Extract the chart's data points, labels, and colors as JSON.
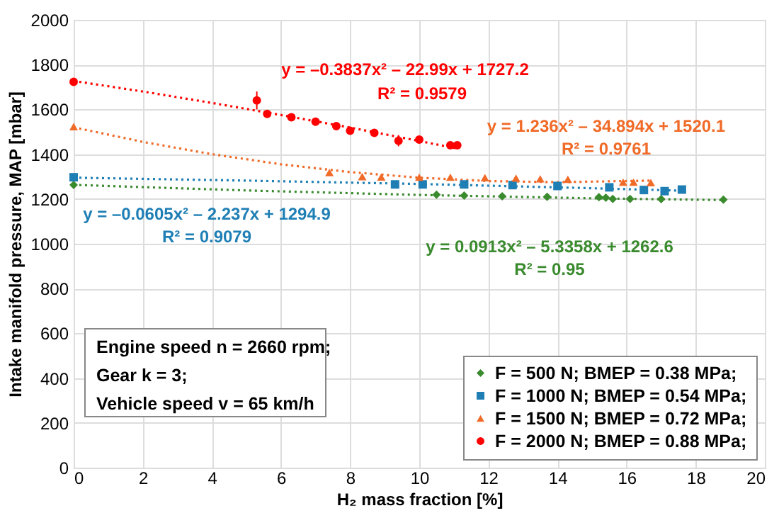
{
  "chart_data": {
    "type": "scatter",
    "xlabel": "H₂ mass fraction [%]",
    "ylabel": "Intake manifold pressure, MAP [mbar]",
    "xlim": [
      0,
      20
    ],
    "xticks": [
      0,
      2,
      4,
      6,
      8,
      10,
      12,
      14,
      16,
      18,
      20
    ],
    "ylim": [
      0,
      2000
    ],
    "yticks": [
      0,
      200,
      400,
      600,
      800,
      1000,
      1200,
      1400,
      1600,
      1800,
      2000
    ],
    "grid": true,
    "legend": "bottom right",
    "series": [
      {
        "name": "F = 500 N; BMEP = 0.38 MPa;",
        "color": "#3a8a2e",
        "marker": "diamond",
        "x": [
          0,
          10.5,
          11.3,
          12.4,
          13.7,
          15.2,
          15.4,
          15.6,
          16.1,
          17.0,
          18.8
        ],
        "values": [
          1263,
          1219,
          1215,
          1212,
          1210,
          1208,
          1206,
          1200,
          1200,
          1199,
          1197
        ]
      },
      {
        "name": "F = 1000 N; BMEP = 0.54 MPa;",
        "color": "#1f7fb5",
        "marker": "square",
        "x": [
          0,
          9.3,
          10.1,
          11.3,
          12.7,
          14.0,
          15.5,
          16.5,
          17.1,
          17.6
        ],
        "values": [
          1297,
          1265,
          1265,
          1265,
          1262,
          1258,
          1252,
          1240,
          1235,
          1242
        ]
      },
      {
        "name": "F = 1500 N; BMEP = 0.72 MPa;",
        "color": "#f06a28",
        "marker": "triangle",
        "x": [
          0,
          7.4,
          8.35,
          8.9,
          10.0,
          10.9,
          11.9,
          12.8,
          13.5,
          14.3,
          15.9,
          16.2,
          16.7
        ],
        "values": [
          1523,
          1318,
          1300,
          1298,
          1297,
          1297,
          1295,
          1293,
          1290,
          1288,
          1275,
          1275,
          1273
        ]
      },
      {
        "name": "F = 2000 N; BMEP = 0.88 MPa;",
        "color": "#ff0000",
        "marker": "circle",
        "x": [
          0,
          5.3,
          5.6,
          6.3,
          7.0,
          7.6,
          8.0,
          8.7,
          9.4,
          10.0,
          10.9,
          11.1
        ],
        "values": [
          1723,
          1640,
          1580,
          1565,
          1545,
          1525,
          1505,
          1495,
          1460,
          1465,
          1440,
          1440
        ],
        "errors": [
          null,
          40,
          null,
          null,
          null,
          15,
          null,
          null,
          25,
          15,
          15,
          null
        ]
      },
      {
        "type": "line",
        "color": "#3a8a2e",
        "marker": "none",
        "line_style": "dotted",
        "x": [
          0,
          5,
          10,
          15,
          18.8
        ],
        "values": [
          1263,
          1238,
          1218,
          1203,
          1195
        ]
      },
      {
        "type": "line",
        "color": "#1f7fb5",
        "marker": "none",
        "line_style": "dotted",
        "x": [
          0,
          5,
          10,
          15,
          17.6
        ],
        "values": [
          1295,
          1282,
          1267,
          1248,
          1237
        ]
      },
      {
        "type": "line",
        "color": "#f06a28",
        "marker": "none",
        "line_style": "dotted",
        "x": [
          0,
          2,
          4,
          6,
          8,
          10,
          12,
          14,
          16.7
        ],
        "values": [
          1520,
          1455,
          1400,
          1355,
          1320,
          1295,
          1280,
          1275,
          1282
        ]
      },
      {
        "type": "line",
        "color": "#ff0000",
        "marker": "none",
        "line_style": "dotted",
        "x": [
          0,
          2,
          4,
          6,
          8,
          10,
          11.1
        ],
        "values": [
          1727,
          1680,
          1629,
          1575,
          1519,
          1459,
          1425
        ]
      }
    ],
    "annotations": [
      "y = 0.0913x² – 5.3358x + 1262.6",
      "R² = 0.95",
      "y = –0.0605x² – 2.237x + 1294.9",
      "R² = 0.9079",
      "y = 1.236x² – 34.894x + 1520.1",
      "R² = 0.9761",
      "y = –0.3837x² – 22.99x + 1727.2",
      "R² = 0.9579",
      "Engine speed n = 2660 rpm;",
      "Gear k = 3;",
      "Vehicle speed v = 65 km/h"
    ]
  }
}
